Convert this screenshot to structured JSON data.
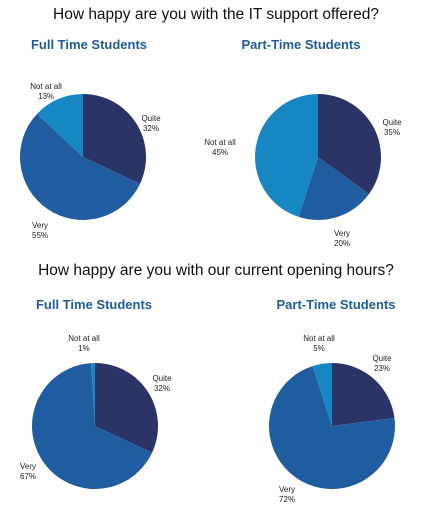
{
  "colors": {
    "quite": "#2b3467",
    "very": "#1f5da0",
    "not_at_all": "#1787c4"
  },
  "chart_data": [
    {
      "type": "pie",
      "title": "How happy are you with the IT support offered?",
      "subtitle": "Full Time Students",
      "slices": [
        {
          "label": "Quite",
          "value": 32
        },
        {
          "label": "Very",
          "value": 55
        },
        {
          "label": "Not at all",
          "value": 13
        }
      ]
    },
    {
      "type": "pie",
      "title": "How happy are you with the IT support offered?",
      "subtitle": "Part-Time Students",
      "slices": [
        {
          "label": "Quite",
          "value": 35
        },
        {
          "label": "Very",
          "value": 20
        },
        {
          "label": "Not at all",
          "value": 45
        }
      ]
    },
    {
      "type": "pie",
      "title": "How happy are you with our current opening hours?",
      "subtitle": "Full Time Students",
      "slices": [
        {
          "label": "Quite",
          "value": 32
        },
        {
          "label": "Very",
          "value": 67
        },
        {
          "label": "Not at all",
          "value": 1
        }
      ]
    },
    {
      "type": "pie",
      "title": "How happy are you with our current opening hours?",
      "subtitle": "Part-Time Students",
      "slices": [
        {
          "label": "Quite",
          "value": 23
        },
        {
          "label": "Very",
          "value": 72
        },
        {
          "label": "Not at all",
          "value": 5
        }
      ]
    }
  ]
}
